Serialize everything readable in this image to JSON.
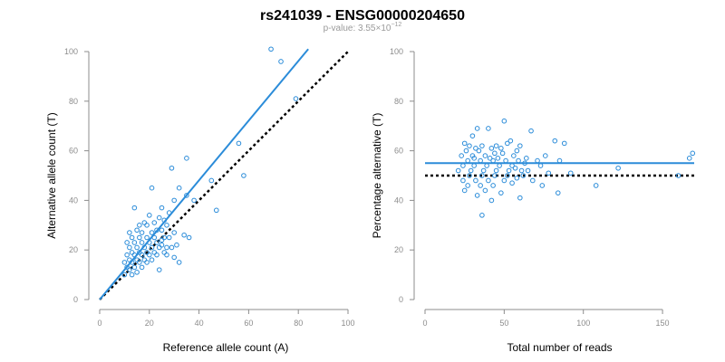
{
  "title": "rs241039 - ENSG00000204650",
  "subtitle": {
    "prefix": "p-value: 3.55",
    "times": "×",
    "base": "10",
    "exponent": "−12"
  },
  "colors": {
    "points": "#2b8cd9",
    "fit_line": "#2b8cd9",
    "reference_line": "#000000",
    "axis": "#8c8c8c"
  },
  "chart_data": [
    {
      "type": "scatter",
      "xlabel": "Reference allele count (A)",
      "ylabel": "Alternative allele count (T)",
      "xlim": [
        0,
        100
      ],
      "ylim": [
        0,
        100
      ],
      "xticks": [
        0,
        20,
        40,
        60,
        80,
        100
      ],
      "yticks": [
        0,
        20,
        40,
        60,
        80,
        100
      ],
      "fit_line": {
        "x": [
          0,
          84
        ],
        "y": [
          0,
          101
        ]
      },
      "reference_line": {
        "x": [
          0,
          100
        ],
        "y": [
          0,
          100
        ]
      },
      "points": [
        [
          69,
          101
        ],
        [
          73,
          96
        ],
        [
          79,
          81
        ],
        [
          56,
          63
        ],
        [
          58,
          50
        ],
        [
          35,
          57
        ],
        [
          29,
          53
        ],
        [
          45,
          48
        ],
        [
          47,
          36
        ],
        [
          21,
          45
        ],
        [
          32,
          45
        ],
        [
          35,
          42
        ],
        [
          30,
          40
        ],
        [
          38,
          40
        ],
        [
          25,
          37
        ],
        [
          14,
          37
        ],
        [
          28,
          35
        ],
        [
          20,
          34
        ],
        [
          24,
          33
        ],
        [
          26,
          32
        ],
        [
          22,
          31
        ],
        [
          18,
          31
        ],
        [
          16,
          30
        ],
        [
          19,
          30
        ],
        [
          27,
          30
        ],
        [
          12,
          27
        ],
        [
          15,
          28
        ],
        [
          23,
          28
        ],
        [
          25,
          28
        ],
        [
          17,
          27
        ],
        [
          21,
          27
        ],
        [
          30,
          27
        ],
        [
          34,
          26
        ],
        [
          13,
          25
        ],
        [
          16,
          25
        ],
        [
          19,
          25
        ],
        [
          22,
          25
        ],
        [
          26,
          25
        ],
        [
          28,
          25
        ],
        [
          36,
          25
        ],
        [
          11,
          23
        ],
        [
          14,
          23
        ],
        [
          17,
          23
        ],
        [
          20,
          23
        ],
        [
          23,
          23
        ],
        [
          25,
          22
        ],
        [
          31,
          22
        ],
        [
          12,
          21
        ],
        [
          15,
          21
        ],
        [
          18,
          21
        ],
        [
          21,
          21
        ],
        [
          24,
          21
        ],
        [
          27,
          21
        ],
        [
          13,
          19
        ],
        [
          16,
          19
        ],
        [
          19,
          19
        ],
        [
          22,
          19
        ],
        [
          26,
          19
        ],
        [
          11,
          18
        ],
        [
          14,
          18
        ],
        [
          17,
          18
        ],
        [
          20,
          18
        ],
        [
          23,
          18
        ],
        [
          12,
          16
        ],
        [
          15,
          16
        ],
        [
          18,
          16
        ],
        [
          21,
          16
        ],
        [
          10,
          15
        ],
        [
          13,
          15
        ],
        [
          16,
          15
        ],
        [
          19,
          15
        ],
        [
          11,
          13
        ],
        [
          14,
          13
        ],
        [
          17,
          13
        ],
        [
          24,
          12
        ],
        [
          12,
          12
        ],
        [
          15,
          11
        ],
        [
          10,
          10
        ],
        [
          13,
          10
        ],
        [
          30,
          17
        ],
        [
          32,
          15
        ],
        [
          27,
          18
        ],
        [
          29,
          21
        ],
        [
          25,
          24
        ]
      ]
    },
    {
      "type": "scatter",
      "xlabel": "Total number of reads",
      "ylabel": "Percentage alternative (T)",
      "xlim": [
        0,
        170
      ],
      "ylim": [
        0,
        100
      ],
      "xticks": [
        0,
        50,
        100,
        150
      ],
      "yticks": [
        0,
        20,
        40,
        60,
        80,
        100
      ],
      "fit_line": {
        "x": [
          0,
          170
        ],
        "y": [
          55,
          55
        ]
      },
      "reference_line": {
        "x": [
          0,
          170
        ],
        "y": [
          50,
          50
        ]
      },
      "points": [
        [
          50,
          72
        ],
        [
          33,
          69
        ],
        [
          67,
          68
        ],
        [
          40,
          69
        ],
        [
          30,
          66
        ],
        [
          88,
          63
        ],
        [
          54,
          64
        ],
        [
          25,
          63
        ],
        [
          28,
          62
        ],
        [
          36,
          62
        ],
        [
          45,
          62
        ],
        [
          52,
          63
        ],
        [
          60,
          62
        ],
        [
          32,
          61
        ],
        [
          42,
          61
        ],
        [
          48,
          61
        ],
        [
          26,
          60
        ],
        [
          34,
          60
        ],
        [
          44,
          59
        ],
        [
          58,
          60
        ],
        [
          82,
          64
        ],
        [
          23,
          58
        ],
        [
          30,
          58
        ],
        [
          38,
          58
        ],
        [
          46,
          57
        ],
        [
          56,
          58
        ],
        [
          64,
          57
        ],
        [
          76,
          58
        ],
        [
          27,
          56
        ],
        [
          35,
          56
        ],
        [
          43,
          56
        ],
        [
          51,
          56
        ],
        [
          59,
          56
        ],
        [
          71,
          56
        ],
        [
          85,
          56
        ],
        [
          169,
          59
        ],
        [
          167,
          57
        ],
        [
          24,
          54
        ],
        [
          31,
          54
        ],
        [
          39,
          54
        ],
        [
          47,
          54
        ],
        [
          55,
          54
        ],
        [
          63,
          55
        ],
        [
          73,
          54
        ],
        [
          21,
          52
        ],
        [
          29,
          52
        ],
        [
          37,
          52
        ],
        [
          45,
          52
        ],
        [
          53,
          52
        ],
        [
          61,
          52
        ],
        [
          92,
          51
        ],
        [
          122,
          53
        ],
        [
          28,
          50
        ],
        [
          36,
          50
        ],
        [
          44,
          50
        ],
        [
          52,
          50
        ],
        [
          62,
          50
        ],
        [
          78,
          51
        ],
        [
          24,
          48
        ],
        [
          32,
          48
        ],
        [
          40,
          48
        ],
        [
          50,
          48
        ],
        [
          58,
          49
        ],
        [
          68,
          48
        ],
        [
          27,
          46
        ],
        [
          35,
          46
        ],
        [
          43,
          46
        ],
        [
          55,
          47
        ],
        [
          74,
          46
        ],
        [
          108,
          46
        ],
        [
          160,
          50
        ],
        [
          25,
          44
        ],
        [
          38,
          44
        ],
        [
          48,
          43
        ],
        [
          60,
          41
        ],
        [
          84,
          43
        ],
        [
          33,
          42
        ],
        [
          42,
          40
        ],
        [
          36,
          34
        ],
        [
          31,
          57
        ],
        [
          57,
          53
        ],
        [
          65,
          52
        ],
        [
          49,
          59
        ],
        [
          41,
          57
        ]
      ]
    }
  ]
}
